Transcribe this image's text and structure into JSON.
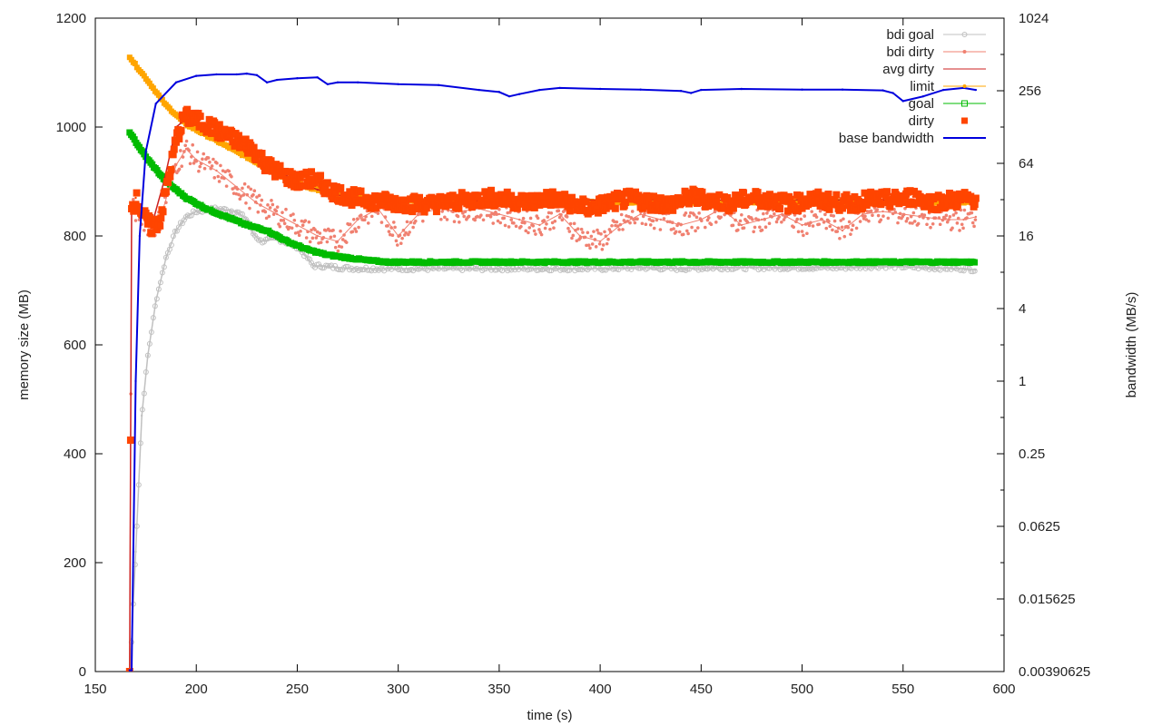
{
  "chart_data": {
    "type": "line",
    "xlabel": "time (s)",
    "ylabel": "memory size (MB)",
    "y2label": "bandwidth (MB/s)",
    "xlim": [
      150,
      600
    ],
    "ylim": [
      0,
      1200
    ],
    "y2scale": "log2",
    "y2lim": [
      0.00390625,
      1024
    ],
    "x_ticks": [
      "150",
      "200",
      "250",
      "300",
      "350",
      "400",
      "450",
      "500",
      "550",
      "600"
    ],
    "y_ticks": [
      "0",
      "200",
      "400",
      "600",
      "800",
      "1000",
      "1200"
    ],
    "y2_ticks": [
      "0.00390625",
      "0.015625",
      "0.0625",
      "0.25",
      "1",
      "4",
      "16",
      "64",
      "256",
      "1024"
    ],
    "grid": false,
    "legend_position": "top-right",
    "series": [
      {
        "name": "bdi goal",
        "axis": "y",
        "color": "#c0c0c0",
        "style": "line-circles",
        "x": [
          167,
          168,
          170,
          173,
          176,
          180,
          185,
          190,
          195,
          200,
          210,
          220,
          225,
          228,
          232,
          240,
          250,
          255,
          258,
          262,
          270,
          280,
          290,
          300,
          320,
          340,
          360,
          380,
          400,
          420,
          440,
          460,
          480,
          500,
          520,
          540,
          560,
          580,
          586
        ],
        "values": [
          0,
          60,
          220,
          470,
          580,
          680,
          760,
          810,
          835,
          845,
          850,
          845,
          830,
          805,
          790,
          795,
          780,
          760,
          745,
          745,
          742,
          740,
          740,
          740,
          740,
          740,
          740,
          740,
          740,
          742,
          740,
          742,
          742,
          742,
          742,
          745,
          742,
          740,
          738
        ]
      },
      {
        "name": "bdi dirty",
        "axis": "y",
        "color": "#f08070",
        "style": "line-points",
        "x": [
          167,
          168,
          172,
          178,
          182,
          186,
          190,
          195,
          200,
          210,
          220,
          230,
          240,
          250,
          260,
          270,
          280,
          290,
          300,
          310,
          320,
          330,
          340,
          350,
          360,
          370,
          380,
          390,
          400,
          410,
          420,
          430,
          440,
          450,
          460,
          470,
          480,
          490,
          500,
          510,
          520,
          530,
          540,
          550,
          560,
          570,
          580,
          586
        ],
        "values": [
          0,
          850,
          840,
          810,
          830,
          880,
          930,
          960,
          940,
          920,
          890,
          860,
          840,
          820,
          800,
          790,
          830,
          850,
          800,
          840,
          850,
          845,
          850,
          840,
          830,
          820,
          840,
          800,
          790,
          820,
          840,
          830,
          820,
          830,
          850,
          820,
          830,
          840,
          820,
          830,
          810,
          840,
          845,
          840,
          835,
          830,
          830,
          835
        ]
      },
      {
        "name": "avg dirty",
        "axis": "y",
        "color": "#cc2020",
        "style": "line",
        "x": [
          167,
          168,
          172,
          178,
          184,
          190,
          195,
          200,
          210,
          220,
          230,
          240,
          250,
          260,
          270,
          280,
          300,
          340,
          380,
          420,
          460,
          500,
          540,
          586
        ],
        "values": [
          0,
          850,
          855,
          820,
          900,
          1000,
          1015,
          1005,
          990,
          975,
          950,
          920,
          900,
          885,
          875,
          870,
          868,
          865,
          866,
          866,
          866,
          866,
          866,
          866
        ]
      },
      {
        "name": "limit",
        "axis": "y",
        "color": "#ffa500",
        "style": "line-points",
        "x": [
          167,
          175,
          185,
          195,
          205,
          215,
          225,
          235,
          245,
          255,
          265,
          275,
          285,
          300,
          340,
          400,
          460,
          520,
          586
        ],
        "values": [
          1128,
          1090,
          1040,
          1005,
          985,
          965,
          945,
          925,
          905,
          890,
          880,
          873,
          868,
          865,
          863,
          862,
          862,
          862,
          862
        ]
      },
      {
        "name": "goal",
        "axis": "y",
        "color": "#00bb00",
        "style": "line-squares",
        "x": [
          167,
          175,
          185,
          195,
          205,
          215,
          225,
          235,
          245,
          255,
          265,
          275,
          285,
          295,
          310,
          340,
          380,
          420,
          460,
          500,
          540,
          586
        ],
        "values": [
          990,
          945,
          900,
          870,
          850,
          835,
          820,
          810,
          790,
          775,
          765,
          760,
          755,
          752,
          752,
          752,
          752,
          752,
          752,
          752,
          752,
          752
        ]
      },
      {
        "name": "dirty",
        "axis": "y",
        "color": "#ff4500",
        "style": "squares",
        "x": [
          167,
          168,
          170,
          174,
          178,
          182,
          186,
          190,
          194,
          198,
          205,
          212,
          220,
          228,
          235,
          242,
          250,
          258,
          266,
          275,
          285,
          295,
          305,
          315,
          325,
          335,
          345,
          355,
          365,
          375,
          385,
          395,
          405,
          415,
          425,
          435,
          445,
          455,
          465,
          475,
          485,
          495,
          505,
          515,
          525,
          535,
          545,
          555,
          565,
          575,
          586
        ],
        "values": [
          0,
          850,
          870,
          835,
          815,
          830,
          900,
          975,
          1020,
          1015,
          1005,
          990,
          975,
          960,
          930,
          915,
          900,
          905,
          885,
          872,
          866,
          862,
          860,
          858,
          862,
          866,
          870,
          866,
          862,
          870,
          860,
          850,
          862,
          868,
          862,
          858,
          872,
          866,
          860,
          870,
          866,
          858,
          868,
          862,
          860,
          868,
          866,
          872,
          862,
          866,
          868
        ]
      },
      {
        "name": "base bandwidth",
        "axis": "y2",
        "color": "#0000dd",
        "style": "line",
        "x": [
          167,
          168,
          170,
          172,
          175,
          180,
          190,
          200,
          210,
          220,
          225,
          230,
          235,
          240,
          250,
          260,
          265,
          270,
          280,
          300,
          320,
          340,
          350,
          355,
          360,
          370,
          380,
          400,
          420,
          440,
          445,
          450,
          470,
          500,
          520,
          540,
          545,
          550,
          560,
          570,
          580,
          586
        ],
        "values": [
          0.004,
          0.004,
          1.0,
          16,
          80,
          200,
          300,
          340,
          350,
          350,
          355,
          345,
          300,
          315,
          325,
          330,
          290,
          300,
          300,
          290,
          285,
          260,
          250,
          230,
          240,
          260,
          270,
          265,
          262,
          255,
          245,
          260,
          265,
          262,
          262,
          258,
          245,
          210,
          230,
          260,
          270,
          260
        ]
      }
    ]
  }
}
